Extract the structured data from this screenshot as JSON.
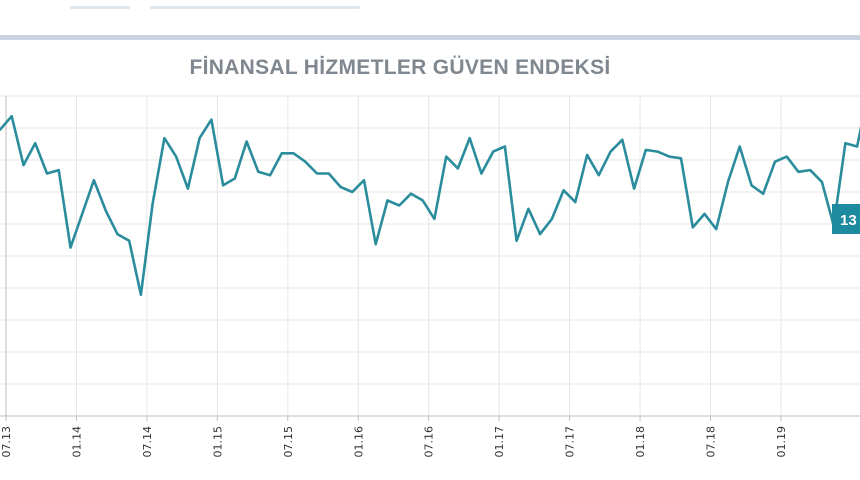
{
  "chart_data": {
    "type": "line",
    "title": "FİNANSAL HİZMETLER GÜVEN ENDEKSİ",
    "xlabel": "",
    "ylabel": "",
    "x_tick_labels": [
      "07.13",
      "01.14",
      "07.14",
      "01.15",
      "07.15",
      "01.16",
      "07.16",
      "01.17",
      "07.17",
      "01.18",
      "07.18",
      "01.19"
    ],
    "grid": true,
    "legend": "none",
    "line_color": "#2a8c9c",
    "callout": {
      "text": "13",
      "color": "#1e8aa0"
    },
    "series": [
      {
        "values": [
          160,
          152,
          181,
          168,
          186,
          184,
          230,
          210,
          190,
          208,
          222,
          226,
          258,
          204,
          165,
          176,
          195,
          165,
          154,
          193,
          189,
          167,
          185,
          187,
          174,
          174,
          179,
          186,
          186,
          194,
          197,
          190,
          228,
          202,
          205,
          198,
          202,
          213,
          176,
          183,
          165,
          186,
          173,
          170,
          226,
          207,
          222,
          213,
          196,
          203,
          175,
          187,
          173,
          166,
          195,
          172,
          173,
          176,
          177,
          218,
          210,
          219,
          191,
          170,
          193,
          198,
          179,
          176,
          185,
          184,
          191,
          217,
          168,
          170,
          156,
          170,
          185,
          165,
          230,
          181,
          204,
          176,
          235,
          235,
          232,
          265,
          235,
          287,
          280,
          280,
          267,
          276,
          267,
          263,
          299,
          308,
          312,
          228,
          259,
          294,
          246,
          266,
          320,
          258,
          240,
          234,
          227,
          214,
          190,
          199,
          210,
          258,
          226
        ]
      }
    ]
  }
}
